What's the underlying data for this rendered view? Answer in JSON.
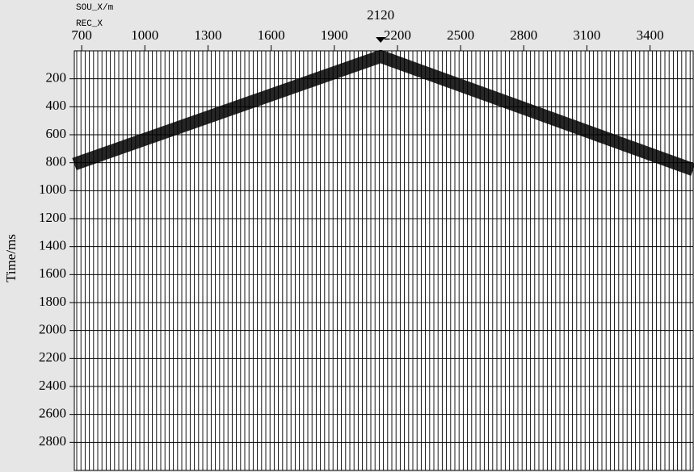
{
  "chart_data": {
    "type": "wiggle",
    "source_label": "SOU_X/m",
    "receiver_label": "REC_X",
    "source_x": 2120,
    "ylabel": "Time/ms",
    "xlim": [
      665,
      3605
    ],
    "xticks": [
      700,
      1000,
      1300,
      1600,
      1900,
      2200,
      2500,
      2800,
      3100,
      3400
    ],
    "ylim": [
      0,
      3000
    ],
    "invert_y": true,
    "yticks": [
      200,
      400,
      600,
      800,
      1000,
      1200,
      1400,
      1600,
      1800,
      2000,
      2200,
      2400,
      2600,
      2800
    ],
    "grid": true,
    "first_arrival": {
      "color": "#000000",
      "x": [
        665,
        2120,
        3605
      ],
      "values": [
        810,
        40,
        850
      ]
    }
  }
}
